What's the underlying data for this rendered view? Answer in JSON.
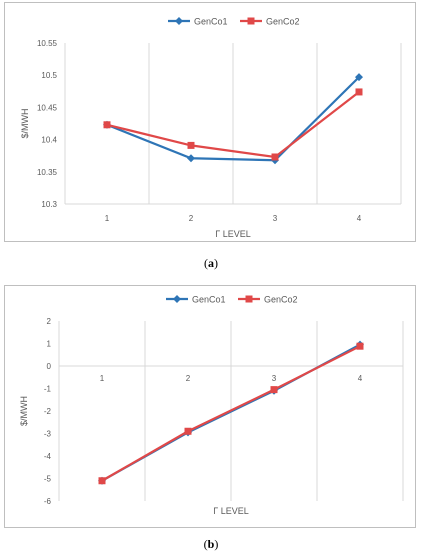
{
  "colors": {
    "series1": "#2E75B6",
    "series2": "#E04848",
    "grid": "#d9d9d9",
    "text": "#595959"
  },
  "captions": {
    "a": "a",
    "b": "b"
  },
  "chart_data": [
    {
      "type": "line",
      "categories": [
        "1",
        "2",
        "3",
        "4"
      ],
      "series": [
        {
          "name": "GenCo1",
          "values": [
            10.423,
            10.371,
            10.368,
            10.497
          ]
        },
        {
          "name": "GenCo2",
          "values": [
            10.423,
            10.391,
            10.373,
            10.474
          ]
        }
      ],
      "ylim": [
        10.3,
        10.55
      ],
      "yticks": [
        "10.3",
        "10.35",
        "10.4",
        "10.45",
        "10.5",
        "10.55"
      ],
      "ylabel": "$/MWH",
      "xlabel": "Γ LEVEL",
      "grid": "vertical",
      "legend": "top-center"
    },
    {
      "type": "line",
      "categories": [
        "1",
        "2",
        "3",
        "4"
      ],
      "series": [
        {
          "name": "GenCo1",
          "values": [
            -5.1,
            -2.95,
            -1.1,
            0.95
          ]
        },
        {
          "name": "GenCo2",
          "values": [
            -5.1,
            -2.9,
            -1.05,
            0.88
          ]
        }
      ],
      "ylim": [
        -6,
        2
      ],
      "yticks": [
        "-6",
        "-5",
        "-4",
        "-3",
        "-2",
        "-1",
        "0",
        "1",
        "2"
      ],
      "ylabel": "$/MWH",
      "xlabel": "Γ LEVEL",
      "grid": "vertical",
      "legend": "top-center"
    }
  ]
}
